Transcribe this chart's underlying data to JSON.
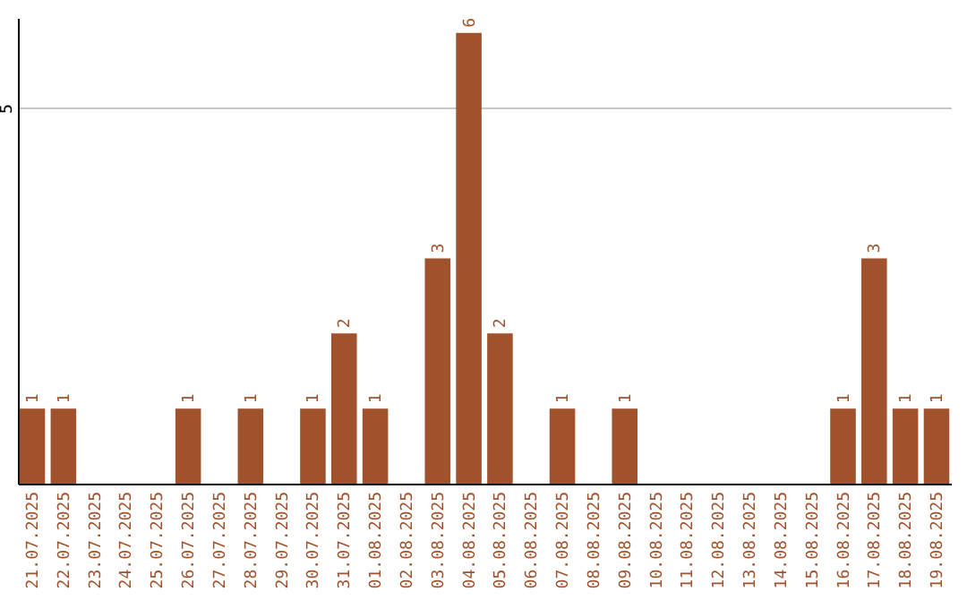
{
  "chart_data": {
    "type": "bar",
    "categories": [
      "21.07.2025",
      "22.07.2025",
      "23.07.2025",
      "24.07.2025",
      "25.07.2025",
      "26.07.2025",
      "27.07.2025",
      "28.07.2025",
      "29.07.2025",
      "30.07.2025",
      "31.07.2025",
      "01.08.2025",
      "02.08.2025",
      "03.08.2025",
      "04.08.2025",
      "05.08.2025",
      "06.08.2025",
      "07.08.2025",
      "08.08.2025",
      "09.08.2025",
      "10.08.2025",
      "11.08.2025",
      "12.08.2025",
      "13.08.2025",
      "14.08.2025",
      "15.08.2025",
      "16.08.2025",
      "17.08.2025",
      "18.08.2025",
      "19.08.2025"
    ],
    "values": [
      1,
      1,
      0,
      0,
      0,
      1,
      0,
      1,
      0,
      1,
      2,
      1,
      0,
      3,
      6,
      2,
      0,
      1,
      0,
      1,
      0,
      0,
      0,
      0,
      0,
      0,
      1,
      3,
      1,
      1
    ],
    "value_labels": [
      "1",
      "1",
      null,
      null,
      null,
      "1",
      null,
      "1",
      null,
      "1",
      "2",
      "1",
      null,
      "3",
      "6",
      "2",
      null,
      "1",
      null,
      "1",
      null,
      null,
      null,
      null,
      null,
      null,
      "1",
      "3",
      "1",
      "1"
    ],
    "color": "#a0522d",
    "ylim": [
      0,
      6.2
    ],
    "yticks": [
      5
    ],
    "grid": "y"
  }
}
